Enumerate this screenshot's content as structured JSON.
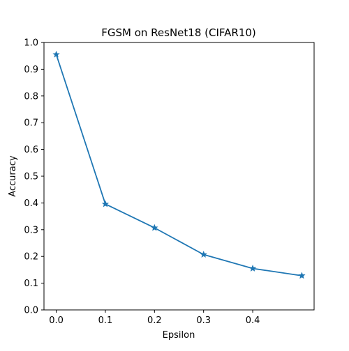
{
  "chart_data": {
    "type": "line",
    "title": "FGSM on ResNet18 (CIFAR10)",
    "xlabel": "Epsilon",
    "ylabel": "Accuracy",
    "xlim": [
      -0.025,
      0.525
    ],
    "ylim": [
      0.0,
      1.0
    ],
    "x_ticks": [
      "0.0",
      "0.1",
      "0.2",
      "0.3",
      "0.4"
    ],
    "y_ticks": [
      "0.0",
      "0.1",
      "0.2",
      "0.3",
      "0.4",
      "0.5",
      "0.6",
      "0.7",
      "0.8",
      "0.9",
      "1.0"
    ],
    "grid": false,
    "legend": "none",
    "series": [
      {
        "color": "#1f77b4",
        "marker": "star",
        "x": [
          0.0,
          0.1,
          0.2,
          0.3,
          0.4,
          0.5
        ],
        "y": [
          0.955,
          0.396,
          0.307,
          0.207,
          0.155,
          0.128
        ]
      }
    ]
  }
}
